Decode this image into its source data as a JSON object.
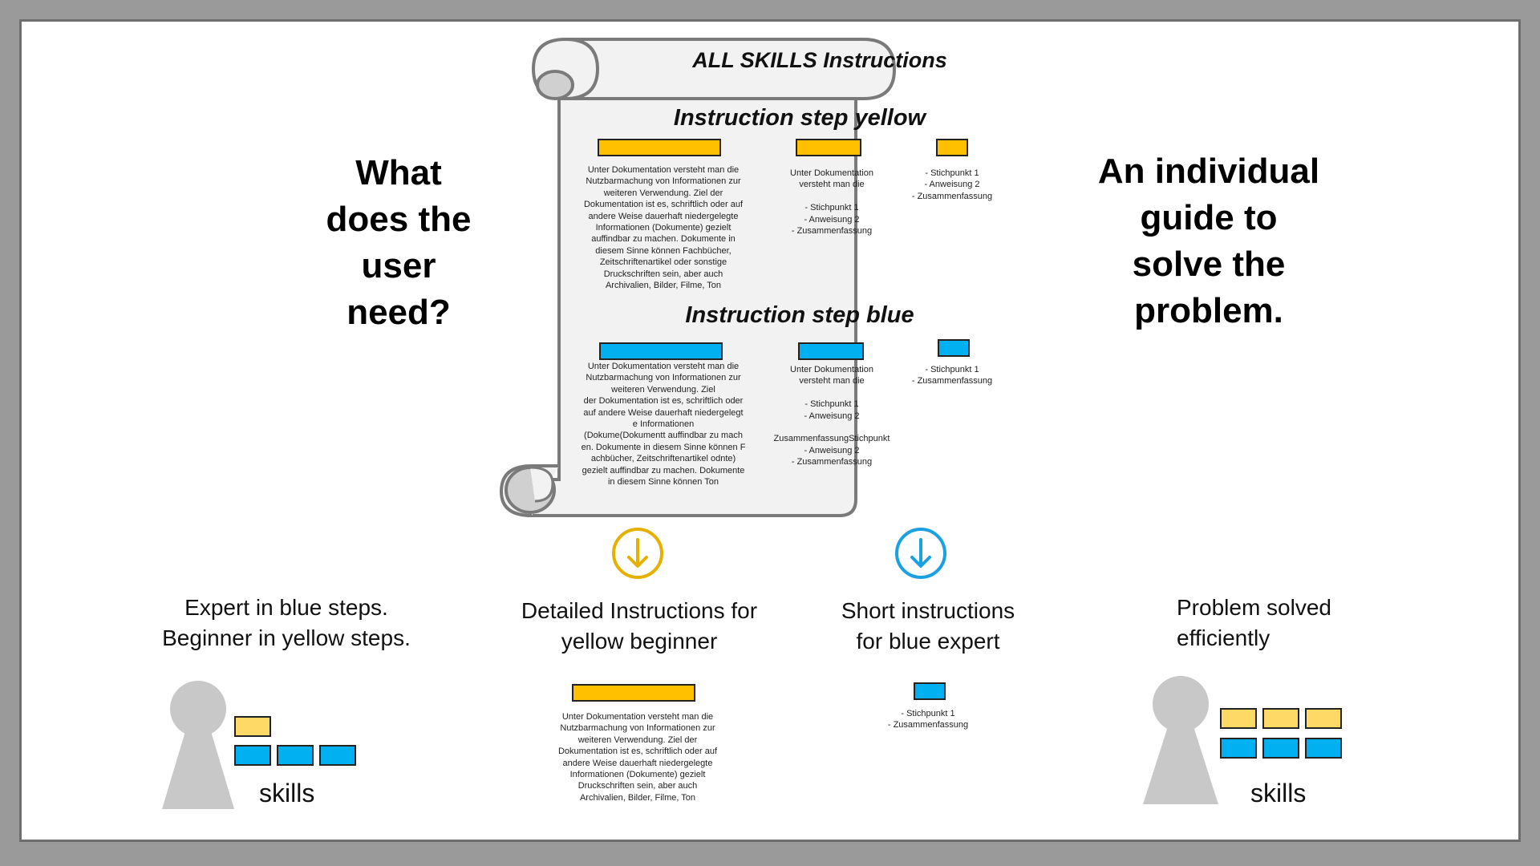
{
  "left_question": "What\ndoes the\nuser\nneed?",
  "right_answer": "An individual\nguide to\nsolve the\nproblem.",
  "scroll": {
    "title": "ALL SKILLS Instructions",
    "yellow": {
      "heading": "Instruction step yellow",
      "col1": "Unter Dokumentation versteht man die\nNutzbarmachung von Informationen zur\nweiteren Verwendung. Ziel der\nDokumentation ist es, schriftlich oder auf\nandere Weise dauerhaft niedergelegte\nInformationen (Dokumente) gezielt\nauffindbar zu machen. Dokumente in\ndiesem Sinne können Fachbücher,\nZeitschriftenartikel oder sonstige\nDruckschriften sein, aber auch\nArchivalien, Bilder, Filme, Ton",
      "col2": "Unter Dokumentation\nversteht man die\n\n- Stichpunkt 1\n- Anweisung 2\n- Zusammenfassung",
      "col3": "- Stichpunkt 1\n- Anweisung 2\n- Zusammenfassung"
    },
    "blue": {
      "heading": "Instruction step blue",
      "col1": "Unter Dokumentation versteht man die\nNutzbarmachung von Informationen zur\nweiteren Verwendung. Ziel\nder Dokumentation ist es, schriftlich oder\nauf andere Weise dauerhaft niedergelegt\ne Informationen\n(Dokume(Dokumentt auffindbar zu mach\nen. Dokumente in diesem Sinne können F\nachbücher, Zeitschriftenartikel odnte)\ngezielt auffindbar zu machen. Dokumente\nin diesem Sinne können Ton",
      "col2": "Unter Dokumentation\nversteht man die\n\n- Stichpunkt 1\n- Anweisung 2\n\nZusammenfassungStichpunkt\n- Anweisung 2\n- Zusammenfassung",
      "col3": "- Stichpunkt 1\n- Zusammenfassung"
    }
  },
  "user_panel": {
    "caption": "Expert in blue steps.\nBeginner in yellow steps.",
    "skills_label": "skills"
  },
  "yellow_branch": {
    "caption": "Detailed Instructions for\nyellow beginner",
    "text": "Unter Dokumentation versteht man die\nNutzbarmachung von Informationen zur\nweiteren Verwendung. Ziel der\nDokumentation ist es, schriftlich oder auf\nandere Weise dauerhaft niedergelegte\nInformationen (Dokumente) gezielt\nDruckschriften sein, aber auch\nArchivalien, Bilder, Filme, Ton"
  },
  "blue_branch": {
    "caption": "Short instructions\nfor blue expert",
    "text": "- Stichpunkt 1\n- Zusammenfassung"
  },
  "result_panel": {
    "caption": "Problem solved\nefficiently",
    "skills_label": "skills"
  },
  "colors": {
    "yellow": "#ffc000",
    "yellow_light": "#ffd966",
    "blue": "#00b0f0",
    "person": "#c8c8c8"
  },
  "icons": [
    "scroll-icon",
    "arrow-down-circle-icon",
    "person-icon"
  ]
}
